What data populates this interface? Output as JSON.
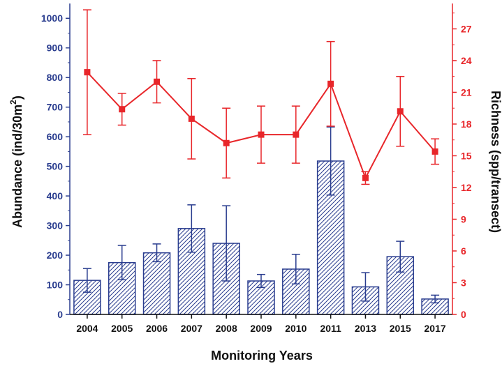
{
  "chart_data": {
    "type": "bar",
    "categories": [
      "2004",
      "2005",
      "2006",
      "2007",
      "2008",
      "2009",
      "2010",
      "2011",
      "2013",
      "2015",
      "2017"
    ],
    "series": [
      {
        "type": "bar",
        "axis": "left",
        "values": [
          115,
          175,
          208,
          290,
          240,
          113,
          153,
          518,
          93,
          195,
          52
        ],
        "error": [
          40,
          58,
          30,
          80,
          127,
          22,
          50,
          115,
          48,
          52,
          13
        ]
      },
      {
        "type": "line",
        "axis": "right",
        "values": [
          22.9,
          19.4,
          22.0,
          18.5,
          16.2,
          17.0,
          17.0,
          21.8,
          12.9,
          19.2,
          15.4
        ],
        "error": [
          5.9,
          1.5,
          2.0,
          3.8,
          3.3,
          2.7,
          2.7,
          4.0,
          0.6,
          3.3,
          1.2
        ]
      }
    ],
    "xlabel": "Monitoring Years",
    "ylabel": "Abundance (ind/30m",
    "ylabel_superscript": "2",
    "ylabel_close": ")",
    "y2label": "Richness (spp/transect)",
    "ylim": [
      0,
      1050
    ],
    "y2lim": [
      0,
      29.4
    ],
    "yticks": [
      0,
      100,
      200,
      300,
      400,
      500,
      600,
      700,
      800,
      900,
      1000
    ],
    "y2ticks": [
      0,
      3,
      6,
      9,
      12,
      15,
      18,
      21,
      24,
      27
    ],
    "bar_pattern": "diagonal-hatch",
    "colors": {
      "bar": "#2a3d8f",
      "line": "#e8262a",
      "axis": "#111111"
    },
    "grid": false,
    "legend": "none"
  }
}
